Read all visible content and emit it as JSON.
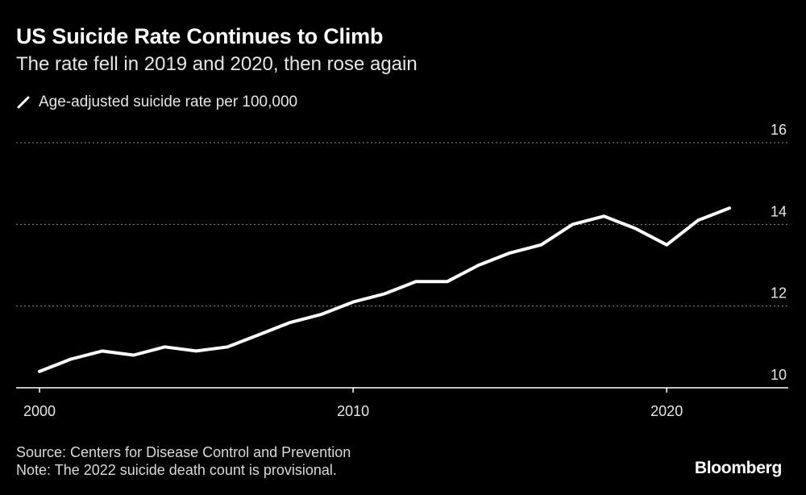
{
  "header": {
    "title": "US Suicide Rate Continues to Climb",
    "subtitle": "The rate fell in 2019 and 2020, then rose again"
  },
  "colors": {
    "background": "#000000",
    "line": "#ffffff",
    "grid": "#8c8c8c",
    "text": "#e6e6e6"
  },
  "chart_data": {
    "type": "line",
    "title": "US Suicide Rate Continues to Climb",
    "subtitle": "The rate fell in 2019 and 2020, then rose again",
    "xlabel": "",
    "ylabel": "",
    "x": [
      2000,
      2001,
      2002,
      2003,
      2004,
      2005,
      2006,
      2007,
      2008,
      2009,
      2010,
      2011,
      2012,
      2013,
      2014,
      2015,
      2016,
      2017,
      2018,
      2019,
      2020,
      2021,
      2022
    ],
    "series": [
      {
        "name": "Age-adjusted suicide rate per 100,000",
        "values": [
          10.4,
          10.7,
          10.9,
          10.8,
          11.0,
          10.9,
          11.0,
          11.3,
          11.6,
          11.8,
          12.1,
          12.3,
          12.6,
          12.6,
          13.0,
          13.3,
          13.5,
          14.0,
          14.2,
          13.9,
          13.5,
          14.1,
          14.4
        ]
      }
    ],
    "xlim": [
      2000,
      2022
    ],
    "ylim": [
      10,
      16
    ],
    "x_ticks": [
      "2000",
      "2010",
      "2020"
    ],
    "y_ticks": [
      "10",
      "12",
      "14",
      "16"
    ],
    "y_axis_side": "right",
    "grid": "horizontal dotted",
    "legend": "top-left"
  },
  "footer": {
    "source": "Source: Centers for Disease Control and Prevention",
    "note": "Note: The 2022 suicide death count is provisional."
  },
  "brand": "Bloomberg"
}
